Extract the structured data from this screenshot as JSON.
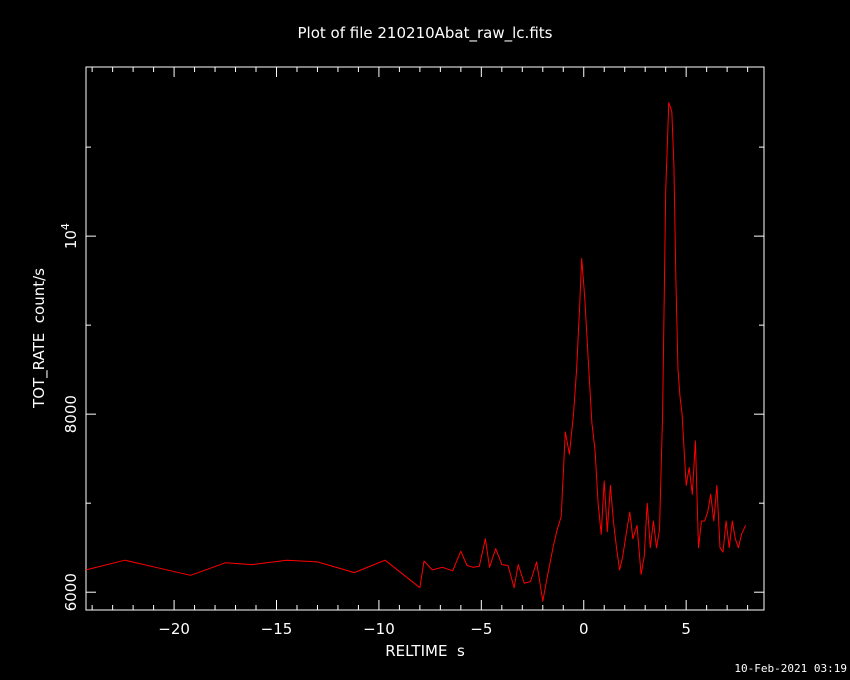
{
  "colors": {
    "background": "#000000",
    "axes": "#ffffff",
    "series": "#ff0000"
  },
  "footer": {
    "timestamp": "10-Feb-2021 03:19"
  },
  "chart_data": {
    "type": "line",
    "title": "Plot of file 210210Abat_raw_lc.fits",
    "xlabel": "RELTIME  s",
    "ylabel": "TOT_RATE  count/s",
    "xlim": [
      -24.3,
      8.8
    ],
    "ylim": [
      5800,
      11900
    ],
    "grid": false,
    "x_ticks": [
      {
        "value": -20,
        "label": "−20"
      },
      {
        "value": -15,
        "label": "−15"
      },
      {
        "value": -10,
        "label": "−10"
      },
      {
        "value": -5,
        "label": "−5"
      },
      {
        "value": 0,
        "label": "0"
      },
      {
        "value": 5,
        "label": "5"
      }
    ],
    "y_ticks": [
      {
        "value": 6000,
        "label": "6000"
      },
      {
        "value": 8000,
        "label": "8000"
      },
      {
        "value": 10000,
        "label": "10",
        "exponent": "4"
      }
    ],
    "y_minor_ticks": [
      7000,
      9000,
      11000
    ],
    "series": [
      {
        "x": [
          -24.3,
          -22.4,
          -20.9,
          -19.2,
          -17.5,
          -16.2,
          -14.5,
          -13.0,
          -11.2,
          -9.7,
          -8.0,
          -7.8,
          -7.4,
          -6.9,
          -6.4,
          -6.0,
          -5.7,
          -5.4,
          -5.1,
          -4.8,
          -4.6,
          -4.3,
          -4.0,
          -3.7,
          -3.4,
          -3.2,
          -2.9,
          -2.6,
          -2.3,
          -2.0,
          -1.8,
          -1.5,
          -1.3,
          -1.1,
          -0.9,
          -0.7,
          -0.5,
          -0.35,
          -0.2,
          -0.1,
          0.05,
          0.2,
          0.4,
          0.55,
          0.7,
          0.85,
          1.0,
          1.15,
          1.3,
          1.45,
          1.6,
          1.75,
          1.9,
          2.1,
          2.25,
          2.4,
          2.6,
          2.8,
          2.95,
          3.1,
          3.25,
          3.4,
          3.55,
          3.7,
          3.85,
          4.0,
          4.15,
          4.3,
          4.4,
          4.5,
          4.6,
          4.7,
          4.8,
          4.9,
          5.0,
          5.15,
          5.3,
          5.45,
          5.6,
          5.75,
          5.9,
          6.05,
          6.2,
          6.35,
          6.5,
          6.65,
          6.8,
          6.95,
          7.1,
          7.25,
          7.4,
          7.55,
          7.7,
          7.9
        ],
        "y": [
          6250,
          6360,
          6280,
          6190,
          6330,
          6310,
          6360,
          6340,
          6220,
          6360,
          6050,
          6350,
          6250,
          6280,
          6240,
          6460,
          6300,
          6280,
          6290,
          6600,
          6280,
          6490,
          6310,
          6300,
          6050,
          6310,
          6100,
          6120,
          6340,
          5900,
          6150,
          6500,
          6700,
          6850,
          7800,
          7550,
          8000,
          8500,
          9200,
          9750,
          9300,
          8700,
          7900,
          7600,
          7000,
          6650,
          7250,
          6680,
          7200,
          6800,
          6500,
          6250,
          6400,
          6700,
          6900,
          6600,
          6750,
          6200,
          6400,
          7000,
          6500,
          6800,
          6500,
          6700,
          8000,
          10500,
          11500,
          11400,
          10800,
          9500,
          8500,
          8200,
          8000,
          7600,
          7200,
          7400,
          7100,
          7700,
          6500,
          6800,
          6800,
          6900,
          7100,
          6800,
          7200,
          6500,
          6450,
          6800,
          6500,
          6800,
          6600,
          6500,
          6650,
          6750
        ]
      }
    ]
  }
}
